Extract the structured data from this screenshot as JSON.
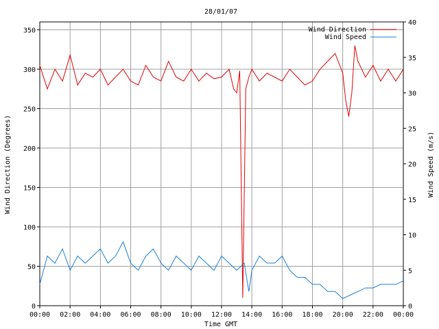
{
  "chart_data": {
    "type": "line",
    "title": "28/01/07",
    "xlabel": "Time GMT",
    "ylabel_left": "Wind Direction (Degrees)",
    "ylabel_right": "Wind Speed (m/s)",
    "x_unit": "hours GMT",
    "xlim": [
      0,
      24
    ],
    "ylim_left": [
      0,
      360
    ],
    "ylim_right": [
      0,
      40
    ],
    "x_ticks": [
      0,
      2,
      4,
      6,
      8,
      10,
      12,
      14,
      16,
      18,
      20,
      22,
      24
    ],
    "x_tick_labels": [
      "00:00",
      "02:00",
      "04:00",
      "06:00",
      "08:00",
      "10:00",
      "12:00",
      "14:00",
      "16:00",
      "18:00",
      "20:00",
      "22:00",
      "00:00"
    ],
    "y_left_ticks": [
      0,
      50,
      100,
      150,
      200,
      250,
      300,
      350
    ],
    "y_right_ticks": [
      0,
      5,
      10,
      15,
      20,
      25,
      30,
      35,
      40
    ],
    "grid": true,
    "legend_position": "top-right",
    "series": [
      {
        "name": "Wind Direction",
        "axis": "left",
        "color": "#e00000",
        "x": [
          0,
          0.5,
          1,
          1.5,
          2,
          2.5,
          3,
          3.5,
          4,
          4.5,
          5,
          5.5,
          6,
          6.5,
          7,
          7.5,
          8,
          8.5,
          9,
          9.5,
          10,
          10.5,
          11,
          11.5,
          12,
          12.5,
          12.8,
          13,
          13.2,
          13.4,
          13.6,
          13.8,
          14,
          14.5,
          15,
          15.5,
          16,
          16.5,
          17,
          17.5,
          18,
          18.5,
          19,
          19.5,
          20,
          20.2,
          20.4,
          20.6,
          20.8,
          21,
          21.5,
          22,
          22.5,
          23,
          23.5,
          24
        ],
        "values": [
          305,
          275,
          300,
          285,
          318,
          280,
          295,
          290,
          300,
          280,
          290,
          300,
          285,
          280,
          305,
          290,
          285,
          310,
          290,
          285,
          300,
          285,
          295,
          288,
          290,
          300,
          275,
          270,
          298,
          10,
          275,
          290,
          300,
          285,
          295,
          290,
          285,
          300,
          290,
          280,
          285,
          300,
          310,
          320,
          295,
          260,
          240,
          270,
          330,
          310,
          290,
          305,
          285,
          300,
          285,
          300
        ]
      },
      {
        "name": "Wind Speed",
        "axis": "right",
        "color": "#1a7fd6",
        "x": [
          0,
          0.5,
          1,
          1.5,
          2,
          2.5,
          3,
          3.5,
          4,
          4.5,
          5,
          5.5,
          6,
          6.5,
          7,
          7.5,
          8,
          8.5,
          9,
          9.5,
          10,
          10.5,
          11,
          11.5,
          12,
          12.5,
          13,
          13.5,
          13.8,
          14,
          14.5,
          15,
          15.5,
          16,
          16.5,
          17,
          17.5,
          18,
          18.5,
          19,
          19.5,
          20,
          20.5,
          21,
          21.5,
          22,
          22.5,
          23,
          23.5,
          24
        ],
        "values": [
          3,
          7,
          6,
          8,
          5,
          7,
          6,
          7,
          8,
          6,
          7,
          9,
          6,
          5,
          7,
          8,
          6,
          5,
          7,
          6,
          5,
          7,
          6,
          5,
          7,
          6,
          5,
          6,
          2,
          5,
          7,
          6,
          6,
          7,
          5,
          4,
          4,
          3,
          3,
          2,
          2,
          1,
          1.5,
          2,
          2.5,
          2.5,
          3,
          3,
          3,
          3.5
        ]
      }
    ]
  }
}
